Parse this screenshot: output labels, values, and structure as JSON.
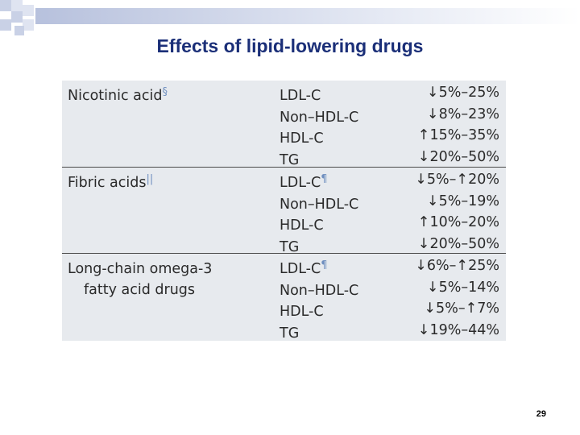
{
  "title": "Effects of lipid-lowering drugs",
  "page_number": "29",
  "colors": {
    "title": "#1b2f78",
    "panel": "#e7eaee",
    "footnote_marks": "#6f8fbf"
  },
  "table": [
    {
      "drug_line1": "Nicotinic acid",
      "drug_line2": "",
      "drug_mark": "§",
      "rows": [
        {
          "param": "LDL-C",
          "mark": "",
          "effect": "↓5%–25%"
        },
        {
          "param": "Non–HDL-C",
          "mark": "",
          "effect": "↓8%–23%"
        },
        {
          "param": "HDL-C",
          "mark": "",
          "effect": "↑15%–35%"
        },
        {
          "param": "TG",
          "mark": "",
          "effect": "↓20%–50%"
        }
      ]
    },
    {
      "drug_line1": "Fibric acids",
      "drug_line2": "",
      "drug_mark": "||",
      "rows": [
        {
          "param": "LDL-C",
          "mark": "¶",
          "effect": "↓5%–↑20%"
        },
        {
          "param": "Non–HDL-C",
          "mark": "",
          "effect": "↓5%–19%"
        },
        {
          "param": "HDL-C",
          "mark": "",
          "effect": "↑10%–20%"
        },
        {
          "param": "TG",
          "mark": "",
          "effect": "↓20%–50%"
        }
      ]
    },
    {
      "drug_line1": "Long-chain omega-3",
      "drug_line2": "fatty acid drugs",
      "drug_mark": "",
      "rows": [
        {
          "param": "LDL-C",
          "mark": "¶",
          "effect": "↓6%–↑25%"
        },
        {
          "param": "Non–HDL-C",
          "mark": "",
          "effect": "↓5%–14%"
        },
        {
          "param": "HDL-C",
          "mark": "",
          "effect": "↓5%–↑7%"
        },
        {
          "param": "TG",
          "mark": "",
          "effect": "↓19%–44%"
        }
      ]
    }
  ]
}
